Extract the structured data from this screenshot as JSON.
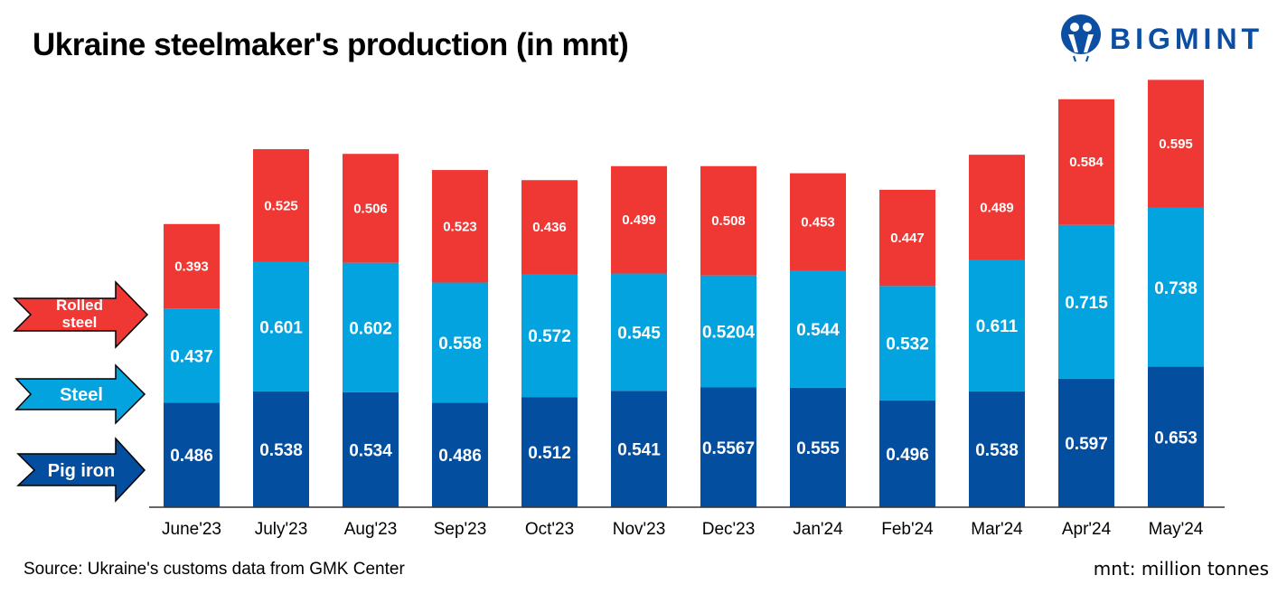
{
  "title": "Ukraine steelmaker's production (in mnt)",
  "logo": {
    "text": "BIGMINT",
    "color": "#0b4ea2"
  },
  "source": "Source: Ukraine's customs data from GMK Center",
  "unit_note": "mnt: million tonnes",
  "chart_data": {
    "type": "bar",
    "stacked": true,
    "title": "Ukraine steelmaker's production (in mnt)",
    "xlabel": "",
    "ylabel": "",
    "ylim": [
      0,
      2.0
    ],
    "grid": false,
    "legend": "left (arrow labels)",
    "categories": [
      "June'23",
      "July'23",
      "Aug'23",
      "Sep'23",
      "Oct'23",
      "Nov'23",
      "Dec'23",
      "Jan'24",
      "Feb'24",
      "Mar'24",
      "Apr'24",
      "May'24"
    ],
    "series": [
      {
        "name": "Pig iron",
        "color": "#044ea0",
        "values": [
          0.486,
          0.538,
          0.534,
          0.486,
          0.512,
          0.541,
          0.5567,
          0.555,
          0.496,
          0.538,
          0.597,
          0.653
        ],
        "labels": [
          "0.486",
          "0.538",
          "0.534",
          "0.486",
          "0.512",
          "0.541",
          "0.5567",
          "0.555",
          "0.496",
          "0.538",
          "0.597",
          "0.653"
        ]
      },
      {
        "name": "Steel",
        "color": "#03a3df",
        "values": [
          0.437,
          0.601,
          0.602,
          0.558,
          0.572,
          0.545,
          0.5204,
          0.544,
          0.532,
          0.611,
          0.715,
          0.738
        ],
        "labels": [
          "0.437",
          "0.601",
          "0.602",
          "0.558",
          "0.572",
          "0.545",
          "0.5204",
          "0.544",
          "0.532",
          "0.611",
          "0.715",
          "0.738"
        ]
      },
      {
        "name": "Rolled steel",
        "color": "#ef3734",
        "values": [
          0.393,
          0.525,
          0.506,
          0.523,
          0.436,
          0.499,
          0.508,
          0.453,
          0.447,
          0.489,
          0.584,
          0.595
        ],
        "labels": [
          "0.393",
          "0.525",
          "0.506",
          "0.523",
          "0.436",
          "0.499",
          "0.508",
          "0.453",
          "0.447",
          "0.489",
          "0.584",
          "0.595"
        ]
      }
    ],
    "legend_labels": {
      "rolled_line1": "Rolled",
      "rolled_line2": "steel",
      "steel": "Steel",
      "pig": "Pig iron"
    }
  }
}
